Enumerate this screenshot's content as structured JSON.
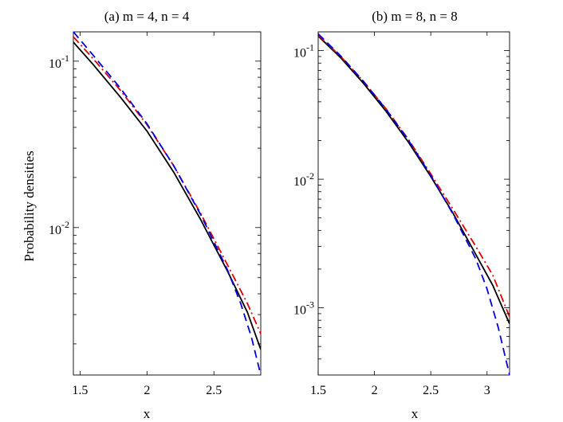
{
  "chart_data": [
    {
      "type": "line",
      "title": "(a) m = 4, n = 4",
      "xlabel": "x",
      "ylabel": "Probability densities",
      "yscale": "log",
      "xlim": [
        1.45,
        2.85
      ],
      "ylim": [
        0.0013,
        0.15
      ],
      "grid": false,
      "xticks": [
        {
          "value": 1.5,
          "label": "1.5"
        },
        {
          "value": 2,
          "label": "2"
        },
        {
          "value": 2.5,
          "label": "2.5"
        }
      ],
      "yticks": [
        {
          "value": 0.01,
          "base": "10",
          "exp": "-2"
        },
        {
          "value": 0.1,
          "base": "10",
          "exp": "-1"
        }
      ],
      "series": [
        {
          "color": "#000000",
          "style": "solid",
          "x": [
            1.45,
            1.6,
            1.8,
            2.0,
            2.2,
            2.4,
            2.6,
            2.75,
            2.85
          ],
          "y": [
            0.13,
            0.095,
            0.061,
            0.038,
            0.0215,
            0.0112,
            0.0055,
            0.0031,
            0.00185
          ]
        },
        {
          "color": "#e00000",
          "style": "dashdot",
          "x": [
            1.45,
            1.6,
            1.8,
            2.0,
            2.2,
            2.4,
            2.6,
            2.75,
            2.85
          ],
          "y": [
            0.14,
            0.103,
            0.067,
            0.0415,
            0.0235,
            0.0122,
            0.006,
            0.0035,
            0.0023
          ]
        },
        {
          "color": "#0000e0",
          "style": "dashed",
          "x": [
            1.45,
            1.6,
            1.8,
            2.0,
            2.2,
            2.4,
            2.6,
            2.7,
            2.78,
            2.85
          ],
          "y": [
            0.15,
            0.108,
            0.069,
            0.042,
            0.0235,
            0.012,
            0.0056,
            0.0035,
            0.0022,
            0.0013
          ]
        }
      ]
    },
    {
      "type": "line",
      "title": "(b) m = 8, n = 8",
      "xlabel": "x",
      "ylabel": "",
      "yscale": "log",
      "xlim": [
        1.5,
        3.2
      ],
      "ylim": [
        0.0003,
        0.14
      ],
      "grid": false,
      "xticks": [
        {
          "value": 1.5,
          "label": "1.5"
        },
        {
          "value": 2,
          "label": "2"
        },
        {
          "value": 2.5,
          "label": "2.5"
        },
        {
          "value": 3,
          "label": "3"
        }
      ],
      "yticks": [
        {
          "value": 0.001,
          "base": "10",
          "exp": "-3"
        },
        {
          "value": 0.01,
          "base": "10",
          "exp": "-2"
        },
        {
          "value": 0.1,
          "base": "10",
          "exp": "-1"
        }
      ],
      "series": [
        {
          "color": "#000000",
          "style": "solid",
          "x": [
            1.5,
            1.7,
            1.9,
            2.1,
            2.3,
            2.5,
            2.7,
            2.9,
            3.05,
            3.2
          ],
          "y": [
            0.13,
            0.088,
            0.056,
            0.034,
            0.0195,
            0.0105,
            0.0054,
            0.0026,
            0.0015,
            0.00075
          ]
        },
        {
          "color": "#e00000",
          "style": "dashdot",
          "x": [
            1.5,
            1.7,
            1.9,
            2.1,
            2.3,
            2.5,
            2.7,
            2.9,
            3.05,
            3.2
          ],
          "y": [
            0.132,
            0.09,
            0.058,
            0.0355,
            0.0205,
            0.011,
            0.0058,
            0.003,
            0.0018,
            0.00085
          ]
        },
        {
          "color": "#0000e0",
          "style": "dashed",
          "x": [
            1.5,
            1.7,
            1.9,
            2.1,
            2.3,
            2.5,
            2.7,
            2.9,
            3.0,
            3.1,
            3.2
          ],
          "y": [
            0.135,
            0.091,
            0.058,
            0.0352,
            0.0202,
            0.0107,
            0.0053,
            0.0024,
            0.0014,
            0.0007,
            0.0003
          ]
        }
      ]
    }
  ]
}
